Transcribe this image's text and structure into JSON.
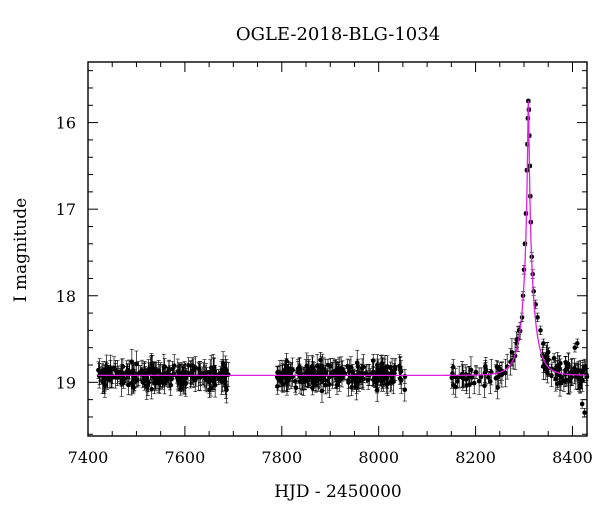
{
  "chart_data": {
    "type": "scatter",
    "title": "OGLE-2018-BLG-1034",
    "xlabel": "HJD - 2450000",
    "ylabel": "I magnitude",
    "xlim": [
      7400,
      8430
    ],
    "ylim": [
      19.62,
      15.3
    ],
    "y_axis_inverted": true,
    "x_ticks": [
      7400,
      7600,
      7800,
      8000,
      8200,
      8400
    ],
    "y_ticks": [
      16,
      17,
      18,
      19
    ],
    "grid": false,
    "legend": "none",
    "colors": {
      "points": "#000000",
      "model": "#e020e0"
    },
    "model": {
      "baseline_mag": 18.92,
      "t0": 8309,
      "peak_mag": 15.75,
      "description_series": "magenta model curve"
    },
    "observing_seasons": [
      {
        "start": 7420,
        "end": 7690
      },
      {
        "start": 7790,
        "end": 8055
      },
      {
        "start": 8150,
        "end": 8430
      }
    ],
    "peak_points": [
      {
        "x": 8296,
        "y": 18.25
      },
      {
        "x": 8298,
        "y": 18.0
      },
      {
        "x": 8300,
        "y": 17.7
      },
      {
        "x": 8302,
        "y": 17.4
      },
      {
        "x": 8304,
        "y": 17.05
      },
      {
        "x": 8306,
        "y": 16.55
      },
      {
        "x": 8307,
        "y": 16.25
      },
      {
        "x": 8308,
        "y": 15.95
      },
      {
        "x": 8309,
        "y": 15.75
      },
      {
        "x": 8310,
        "y": 15.85
      },
      {
        "x": 8311,
        "y": 16.15
      },
      {
        "x": 8312,
        "y": 16.5
      },
      {
        "x": 8313,
        "y": 16.85
      },
      {
        "x": 8314,
        "y": 17.15
      },
      {
        "x": 8316,
        "y": 17.55
      },
      {
        "x": 8318,
        "y": 17.75
      },
      {
        "x": 8320,
        "y": 17.95
      },
      {
        "x": 8324,
        "y": 18.1
      },
      {
        "x": 8328,
        "y": 18.25
      },
      {
        "x": 8334,
        "y": 18.4
      },
      {
        "x": 8340,
        "y": 18.55
      },
      {
        "x": 8350,
        "y": 18.65
      },
      {
        "x": 8362,
        "y": 18.72
      },
      {
        "x": 8375,
        "y": 18.78
      },
      {
        "x": 8390,
        "y": 18.82
      },
      {
        "x": 8405,
        "y": 18.6
      },
      {
        "x": 8410,
        "y": 18.55
      },
      {
        "x": 8420,
        "y": 19.25
      },
      {
        "x": 8425,
        "y": 19.35
      },
      {
        "x": 8275,
        "y": 18.75
      },
      {
        "x": 8285,
        "y": 18.55
      },
      {
        "x": 8290,
        "y": 18.4
      }
    ]
  }
}
